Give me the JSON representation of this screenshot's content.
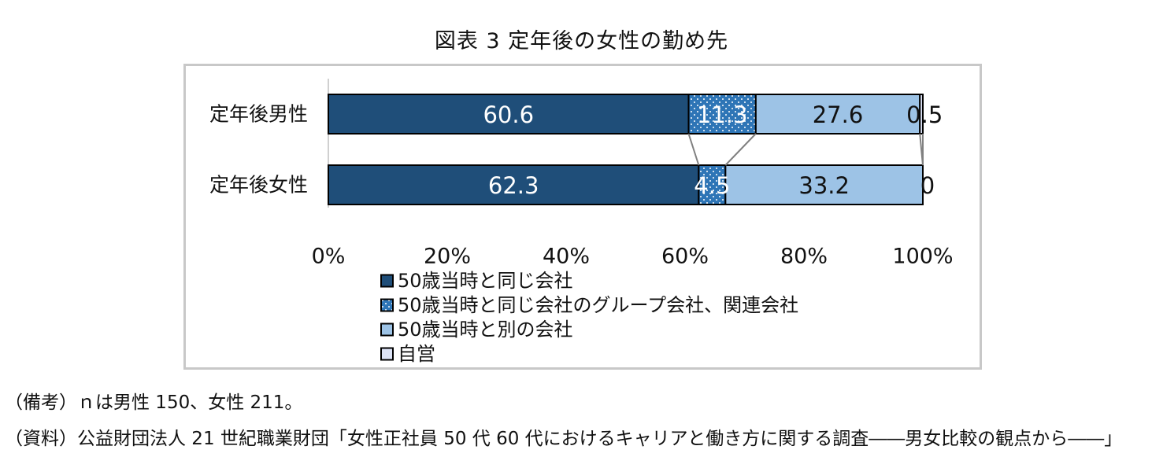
{
  "title": "図表 3 定年後の女性の勤め先",
  "chart_data": {
    "type": "bar",
    "orientation": "horizontal",
    "stacked": true,
    "percent": true,
    "categories": [
      "定年後男性",
      "定年後女性"
    ],
    "series": [
      {
        "name": "50歳当時と同じ会社",
        "values": [
          60.6,
          62.3
        ],
        "color": "#1f4e79",
        "labels": [
          "60.6",
          "62.3"
        ]
      },
      {
        "name": "50歳当時と同じ会社のグループ会社、関連会社",
        "values": [
          11.3,
          4.5
        ],
        "color": "#2e75b6",
        "pattern": "dots",
        "labels": [
          "11.3",
          "4.5"
        ]
      },
      {
        "name": "50歳当時と別の会社",
        "values": [
          27.6,
          33.2
        ],
        "color": "#9dc3e6",
        "labels": [
          "27.6",
          "33.2"
        ]
      },
      {
        "name": "自営",
        "values": [
          0.5,
          0
        ],
        "color": "#dde4f7",
        "labels": [
          "0.5",
          "0"
        ]
      }
    ],
    "x_ticks": [
      "0%",
      "20%",
      "40%",
      "60%",
      "80%",
      "100%"
    ],
    "xlim": [
      0,
      100
    ],
    "series_lines": true,
    "legend_position": "bottom",
    "grid": false
  },
  "notes": {
    "note1": "（備考）ｎは男性 150、女性 211。",
    "note2": "（資料）公益財団法人 21 世紀職業財団「女性正社員 50 代 60 代におけるキャリアと働き方に関する調査――男女比較の観点から――」"
  }
}
